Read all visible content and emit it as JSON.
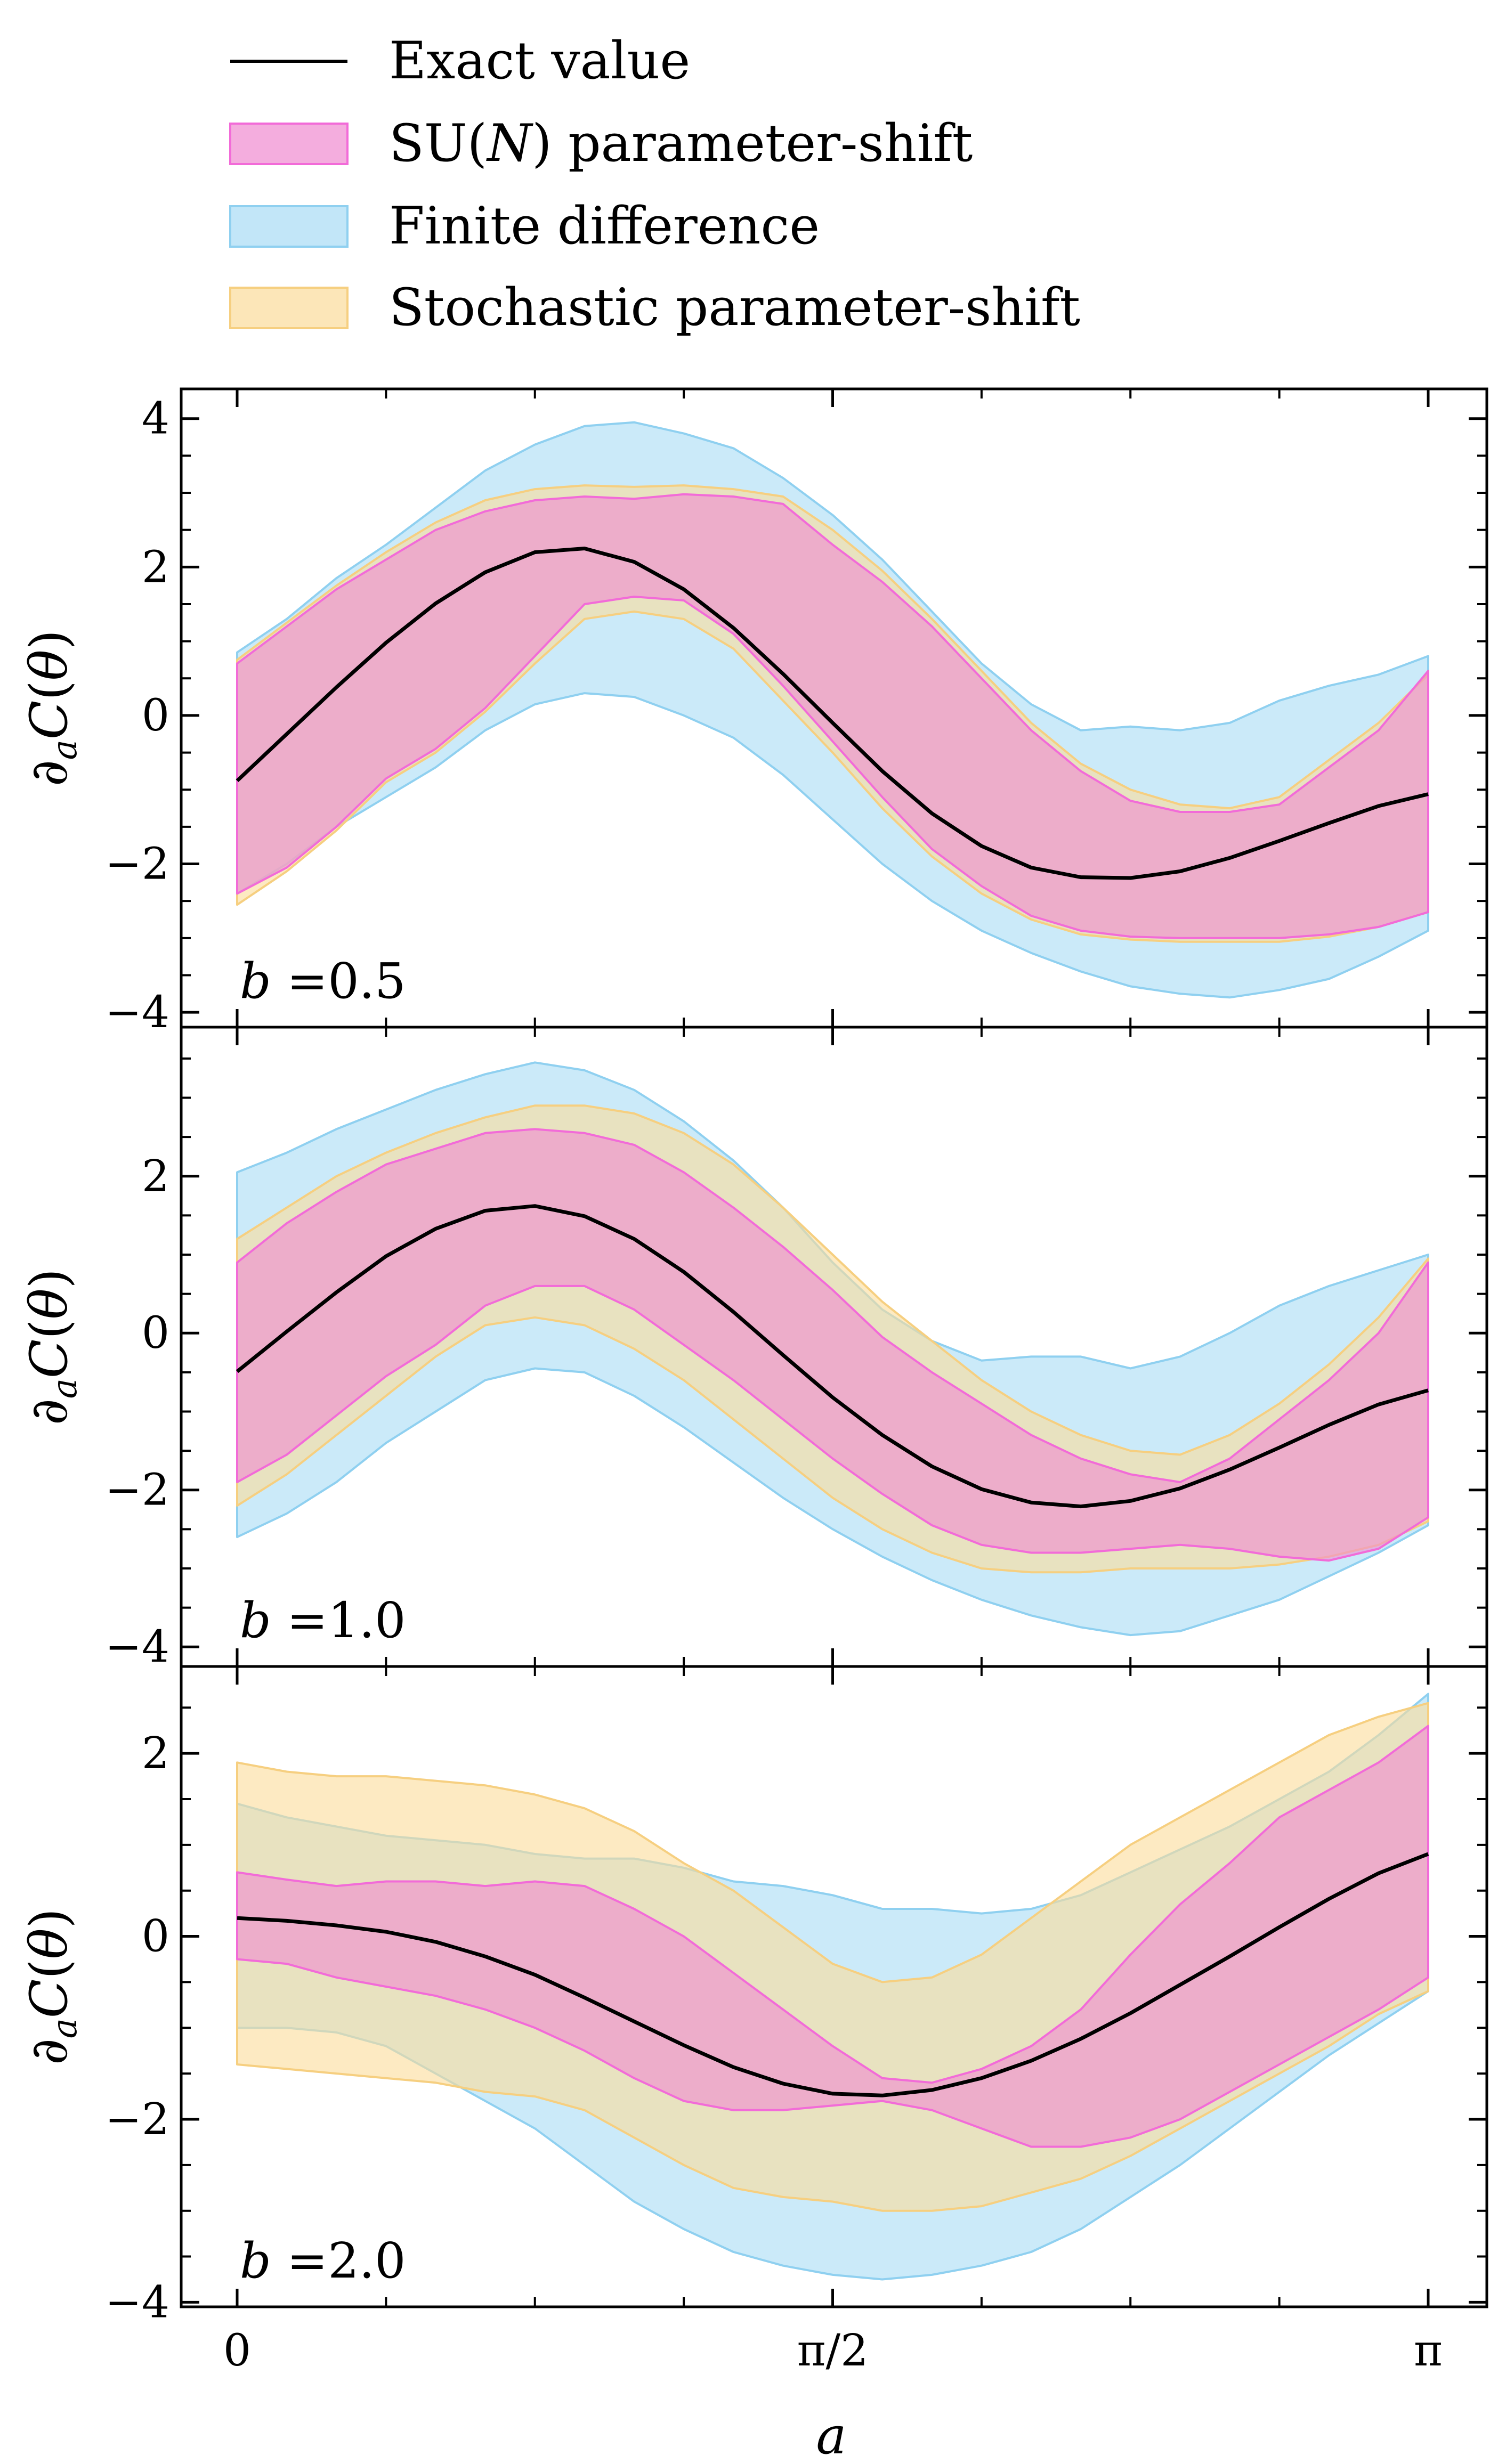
{
  "chart_data": {
    "type": "line",
    "xlabel": "a",
    "ylabel": "∂aC(θ)",
    "xlim": [
      0,
      3.1416
    ],
    "x_ticks": [
      {
        "value": 0,
        "label": "0"
      },
      {
        "value": 1.5708,
        "label": "π/2"
      },
      {
        "value": 3.1416,
        "label": "π"
      }
    ],
    "y_tick_labels": [
      "4",
      "2",
      "0",
      "−2",
      "−4"
    ],
    "grid": false,
    "legend": {
      "placement": "top",
      "entries": [
        {
          "key": "exact",
          "label": "Exact value",
          "kind": "line",
          "color": "#000000"
        },
        {
          "key": "sun",
          "label": "SU(N) parameter-shift",
          "kind": "band",
          "color": "#f08ad0",
          "edge": "#f26bd8"
        },
        {
          "key": "fd",
          "label": "Finite difference",
          "kind": "band",
          "color": "#a8dcf5",
          "edge": "#8fd0f0"
        },
        {
          "key": "sps",
          "label": "Stochastic parameter-shift",
          "kind": "band",
          "color": "#fbdc9a",
          "edge": "#f6cf80"
        }
      ]
    },
    "x": [
      0,
      0.1309,
      0.2618,
      0.3927,
      0.5236,
      0.6545,
      0.7854,
      0.9163,
      1.0472,
      1.1781,
      1.309,
      1.4399,
      1.5708,
      1.7017,
      1.8326,
      1.9635,
      2.0944,
      2.2253,
      2.3562,
      2.4871,
      2.618,
      2.7489,
      2.8798,
      3.0107,
      3.1416
    ],
    "panels": [
      {
        "label": "b =0.5",
        "ylim": [
          -4.2,
          4.4
        ],
        "exact": [
          -0.88,
          -0.25,
          0.38,
          0.98,
          1.51,
          1.93,
          2.2,
          2.25,
          2.07,
          1.7,
          1.18,
          0.56,
          -0.1,
          -0.75,
          -1.32,
          -1.76,
          -2.05,
          -2.18,
          -2.19,
          -2.1,
          -1.92,
          -1.69,
          -1.45,
          -1.22,
          -1.06
        ],
        "sun_lower": [
          -2.4,
          -2.05,
          -1.5,
          -0.85,
          -0.45,
          0.1,
          0.8,
          1.5,
          1.6,
          1.55,
          1.1,
          0.4,
          -0.35,
          -1.1,
          -1.8,
          -2.3,
          -2.7,
          -2.9,
          -2.98,
          -3.0,
          -3.0,
          -3.0,
          -2.95,
          -2.85,
          -2.65
        ],
        "sun_upper": [
          0.7,
          1.2,
          1.7,
          2.1,
          2.5,
          2.75,
          2.9,
          2.95,
          2.92,
          2.98,
          2.95,
          2.85,
          2.3,
          1.8,
          1.2,
          0.5,
          -0.2,
          -0.75,
          -1.15,
          -1.3,
          -1.3,
          -1.2,
          -0.7,
          -0.2,
          0.6
        ],
        "fd_lower": [
          -2.4,
          -2.0,
          -1.5,
          -1.1,
          -0.7,
          -0.2,
          0.15,
          0.3,
          0.25,
          0.0,
          -0.3,
          -0.8,
          -1.4,
          -2.0,
          -2.5,
          -2.9,
          -3.2,
          -3.45,
          -3.65,
          -3.75,
          -3.8,
          -3.7,
          -3.55,
          -3.25,
          -2.9
        ],
        "fd_upper": [
          0.85,
          1.3,
          1.85,
          2.3,
          2.8,
          3.3,
          3.65,
          3.9,
          3.95,
          3.8,
          3.6,
          3.2,
          2.7,
          2.1,
          1.4,
          0.7,
          0.15,
          -0.2,
          -0.15,
          -0.2,
          -0.1,
          0.2,
          0.4,
          0.55,
          0.8
        ],
        "sps_lower": [
          -2.55,
          -2.1,
          -1.55,
          -0.9,
          -0.5,
          0.05,
          0.7,
          1.3,
          1.4,
          1.3,
          0.9,
          0.2,
          -0.5,
          -1.25,
          -1.9,
          -2.4,
          -2.75,
          -2.95,
          -3.02,
          -3.05,
          -3.05,
          -3.05,
          -2.98,
          -2.85,
          -2.65
        ],
        "sps_upper": [
          0.75,
          1.25,
          1.75,
          2.2,
          2.6,
          2.9,
          3.05,
          3.1,
          3.08,
          3.1,
          3.05,
          2.95,
          2.5,
          1.95,
          1.3,
          0.6,
          -0.1,
          -0.65,
          -1.0,
          -1.2,
          -1.25,
          -1.1,
          -0.6,
          -0.1,
          0.55
        ]
      },
      {
        "label": "b =1.0",
        "ylim": [
          -4.25,
          3.9
        ],
        "exact": [
          -0.49,
          0.02,
          0.52,
          0.98,
          1.33,
          1.56,
          1.62,
          1.49,
          1.2,
          0.78,
          0.27,
          -0.28,
          -0.82,
          -1.3,
          -1.7,
          -1.99,
          -2.16,
          -2.21,
          -2.14,
          -1.98,
          -1.74,
          -1.46,
          -1.17,
          -0.91,
          -0.73
        ],
        "sun_lower": [
          -1.9,
          -1.55,
          -1.05,
          -0.55,
          -0.15,
          0.35,
          0.6,
          0.6,
          0.3,
          -0.15,
          -0.6,
          -1.1,
          -1.6,
          -2.05,
          -2.45,
          -2.7,
          -2.8,
          -2.8,
          -2.75,
          -2.7,
          -2.75,
          -2.85,
          -2.9,
          -2.75,
          -2.35
        ],
        "sun_upper": [
          0.9,
          1.4,
          1.8,
          2.15,
          2.35,
          2.55,
          2.6,
          2.55,
          2.4,
          2.05,
          1.6,
          1.1,
          0.55,
          -0.05,
          -0.5,
          -0.9,
          -1.3,
          -1.6,
          -1.8,
          -1.9,
          -1.6,
          -1.1,
          -0.6,
          0.0,
          0.9
        ],
        "fd_lower": [
          -2.6,
          -2.3,
          -1.9,
          -1.4,
          -1.0,
          -0.6,
          -0.45,
          -0.5,
          -0.8,
          -1.2,
          -1.65,
          -2.1,
          -2.5,
          -2.85,
          -3.15,
          -3.4,
          -3.6,
          -3.75,
          -3.85,
          -3.8,
          -3.6,
          -3.4,
          -3.1,
          -2.8,
          -2.45
        ],
        "fd_upper": [
          2.05,
          2.3,
          2.6,
          2.85,
          3.1,
          3.3,
          3.45,
          3.35,
          3.1,
          2.7,
          2.2,
          1.6,
          0.9,
          0.3,
          -0.1,
          -0.35,
          -0.3,
          -0.3,
          -0.45,
          -0.3,
          0.0,
          0.35,
          0.6,
          0.8,
          1.0
        ],
        "sps_lower": [
          -2.2,
          -1.8,
          -1.3,
          -0.8,
          -0.3,
          0.1,
          0.2,
          0.1,
          -0.2,
          -0.6,
          -1.1,
          -1.6,
          -2.1,
          -2.5,
          -2.8,
          -3.0,
          -3.05,
          -3.05,
          -3.0,
          -3.0,
          -3.0,
          -2.95,
          -2.85,
          -2.7,
          -2.4
        ],
        "sps_upper": [
          1.2,
          1.6,
          2.0,
          2.3,
          2.55,
          2.75,
          2.9,
          2.9,
          2.8,
          2.55,
          2.15,
          1.6,
          1.0,
          0.4,
          -0.1,
          -0.6,
          -1.0,
          -1.3,
          -1.5,
          -1.55,
          -1.3,
          -0.9,
          -0.4,
          0.2,
          0.95
        ]
      },
      {
        "label": "b =2.0",
        "ylim": [
          -4.05,
          2.95
        ],
        "exact": [
          0.2,
          0.17,
          0.12,
          0.05,
          -0.06,
          -0.22,
          -0.42,
          -0.67,
          -0.93,
          -1.19,
          -1.43,
          -1.61,
          -1.72,
          -1.74,
          -1.68,
          -1.55,
          -1.36,
          -1.12,
          -0.84,
          -0.53,
          -0.22,
          0.1,
          0.41,
          0.69,
          0.9
        ],
        "sun_lower": [
          -0.25,
          -0.3,
          -0.45,
          -0.55,
          -0.65,
          -0.8,
          -1.0,
          -1.25,
          -1.55,
          -1.8,
          -1.9,
          -1.9,
          -1.85,
          -1.8,
          -1.9,
          -2.1,
          -2.3,
          -2.3,
          -2.2,
          -2.0,
          -1.7,
          -1.4,
          -1.1,
          -0.8,
          -0.45
        ],
        "sun_upper": [
          0.7,
          0.62,
          0.55,
          0.6,
          0.6,
          0.55,
          0.6,
          0.55,
          0.3,
          0.0,
          -0.4,
          -0.8,
          -1.2,
          -1.55,
          -1.6,
          -1.45,
          -1.2,
          -0.8,
          -0.2,
          0.35,
          0.8,
          1.3,
          1.6,
          1.9,
          2.3
        ],
        "fd_lower": [
          -1.0,
          -1.0,
          -1.05,
          -1.2,
          -1.5,
          -1.8,
          -2.1,
          -2.5,
          -2.9,
          -3.2,
          -3.45,
          -3.6,
          -3.7,
          -3.75,
          -3.7,
          -3.6,
          -3.45,
          -3.2,
          -2.85,
          -2.5,
          -2.1,
          -1.7,
          -1.3,
          -0.95,
          -0.6
        ],
        "fd_upper": [
          1.45,
          1.3,
          1.2,
          1.1,
          1.05,
          1.0,
          0.9,
          0.85,
          0.85,
          0.75,
          0.6,
          0.55,
          0.45,
          0.3,
          0.3,
          0.25,
          0.3,
          0.45,
          0.7,
          0.95,
          1.2,
          1.5,
          1.8,
          2.2,
          2.65
        ],
        "sps_lower": [
          -1.4,
          -1.45,
          -1.5,
          -1.55,
          -1.6,
          -1.7,
          -1.75,
          -1.9,
          -2.2,
          -2.5,
          -2.75,
          -2.85,
          -2.9,
          -3.0,
          -3.0,
          -2.95,
          -2.8,
          -2.65,
          -2.4,
          -2.1,
          -1.8,
          -1.5,
          -1.2,
          -0.85,
          -0.6
        ],
        "sps_upper": [
          1.9,
          1.8,
          1.75,
          1.75,
          1.7,
          1.65,
          1.55,
          1.4,
          1.15,
          0.8,
          0.5,
          0.1,
          -0.3,
          -0.5,
          -0.45,
          -0.2,
          0.2,
          0.6,
          1.0,
          1.3,
          1.6,
          1.9,
          2.2,
          2.4,
          2.55
        ]
      }
    ]
  }
}
